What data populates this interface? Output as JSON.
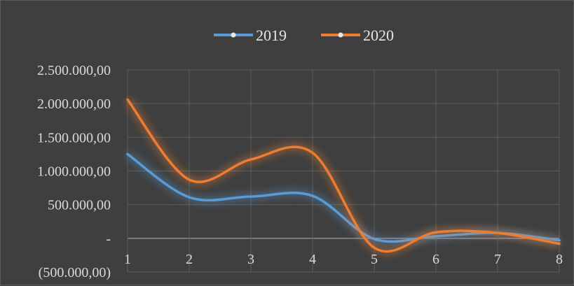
{
  "chart_data": {
    "type": "line",
    "title": "",
    "xlabel": "",
    "ylabel": "",
    "categories": [
      "1",
      "2",
      "3",
      "4",
      "5",
      "6",
      "7",
      "8"
    ],
    "series": [
      {
        "name": "2019",
        "color": "#5b9bd5",
        "values": [
          1250000,
          610000,
          620000,
          630000,
          -10000,
          30000,
          80000,
          -30000
        ]
      },
      {
        "name": "2020",
        "color": "#ed7d31",
        "values": [
          2060000,
          870000,
          1170000,
          1270000,
          -140000,
          90000,
          80000,
          -80000
        ]
      }
    ],
    "y_tick_labels": [
      "(500.000,00)",
      "-",
      "500.000,00",
      "1.000.000,00",
      "1.500.000,00",
      "2.000.000,00",
      "2.500.000,00"
    ],
    "y_tick_values": [
      -500000,
      0,
      500000,
      1000000,
      1500000,
      2000000,
      2500000
    ],
    "ylim": [
      -500000,
      2500000
    ],
    "grid": true,
    "smooth": true,
    "legend_position": "top"
  }
}
